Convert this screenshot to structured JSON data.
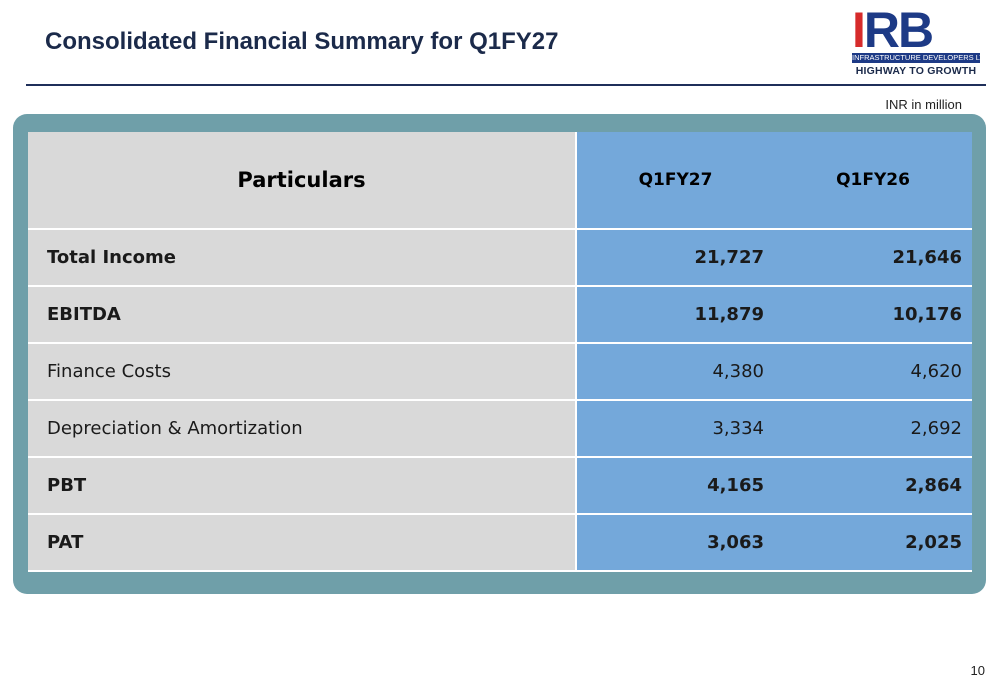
{
  "slide": {
    "title": "Consolidated Financial Summary for Q1FY27",
    "units": "INR in million",
    "page_number": "10"
  },
  "logo": {
    "letter_i": "I",
    "letters_rb": "RB",
    "company": "INFRASTRUCTURE DEVELOPERS LTD",
    "tagline": "HIGHWAY TO GROWTH",
    "colors": {
      "i": "#d62b2b",
      "rb": "#1d3a86"
    }
  },
  "table": {
    "headers": [
      "Particulars",
      "Q1FY27",
      "Q1FY26"
    ],
    "rows": [
      {
        "label": "Total Income",
        "q1fy27": "21,727",
        "q1fy26": "21,646",
        "bold": true
      },
      {
        "label": "EBITDA",
        "q1fy27": "11,879",
        "q1fy26": "10,176",
        "bold": true
      },
      {
        "label": "Finance Costs",
        "q1fy27": "4,380",
        "q1fy26": "4,620",
        "bold": false
      },
      {
        "label": "Depreciation & Amortization",
        "q1fy27": "3,334",
        "q1fy26": "2,692",
        "bold": false
      },
      {
        "label": "PBT",
        "q1fy27": "4,165",
        "q1fy26": "2,864",
        "bold": true
      },
      {
        "label": "PAT",
        "q1fy27": "3,063",
        "q1fy26": "2,025",
        "bold": true
      }
    ],
    "colors": {
      "frame": "#6f9fa9",
      "label_column": "#d9d9d9",
      "value_columns": "#74a8da"
    }
  }
}
